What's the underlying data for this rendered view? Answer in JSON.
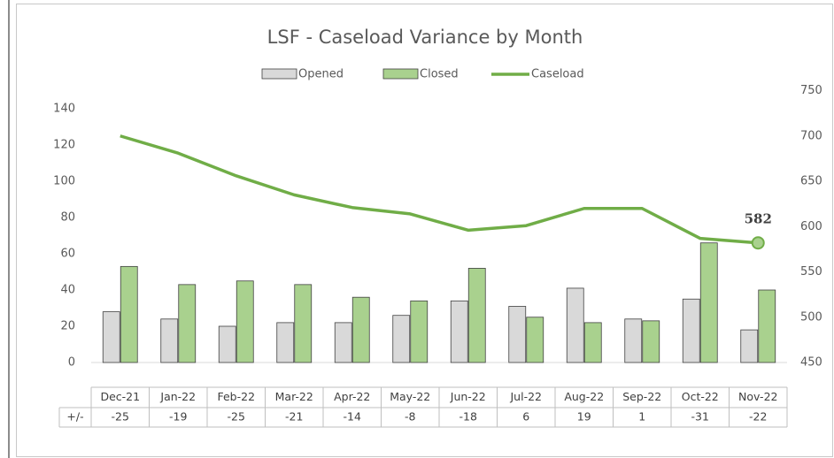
{
  "chart_data": {
    "type": "bar_line",
    "title": "LSF - Caseload Variance by Month",
    "categories": [
      "Dec-21",
      "Jan-22",
      "Feb-22",
      "Mar-22",
      "Apr-22",
      "May-22",
      "Jun-22",
      "Jul-22",
      "Aug-22",
      "Sep-22",
      "Oct-22",
      "Nov-22"
    ],
    "series": [
      {
        "name": "Opened",
        "color": "#d9d9d9",
        "type": "bar",
        "values": [
          28,
          24,
          20,
          22,
          22,
          26,
          34,
          31,
          41,
          24,
          35,
          18
        ]
      },
      {
        "name": "Closed",
        "color": "#a9d18e",
        "type": "bar",
        "values": [
          53,
          43,
          45,
          43,
          36,
          34,
          52,
          25,
          22,
          23,
          66,
          40
        ]
      },
      {
        "name": "Caseload",
        "color": "#70ad47",
        "type": "line",
        "axis": "y2",
        "values": [
          700,
          681,
          656,
          635,
          621,
          614,
          596,
          601,
          620,
          620,
          587,
          582
        ]
      }
    ],
    "ylim": [
      0,
      150
    ],
    "yticks": [
      0,
      20,
      40,
      60,
      80,
      100,
      120,
      140
    ],
    "y2lim": [
      450,
      750
    ],
    "y2ticks": [
      450,
      500,
      550,
      600,
      650,
      700,
      750
    ],
    "table_label": "+/-",
    "table_values": [
      -25,
      -19,
      -25,
      -21,
      -14,
      -8,
      -18,
      6,
      19,
      1,
      -31,
      -22
    ]
  }
}
